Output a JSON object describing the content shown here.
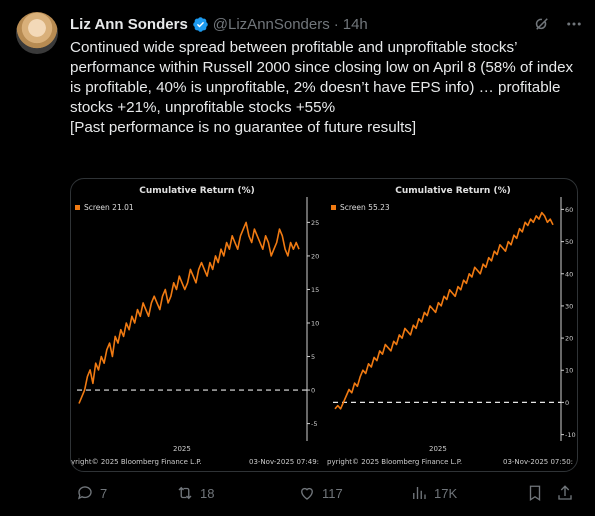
{
  "author": {
    "name": "Liz Ann Sonders",
    "handle": "@LizAnnSonders",
    "time": "14h"
  },
  "tweet": {
    "text": "Continued wide spread between profitable and unprofitable stocks’ performance within Russell 2000 since closing low on April 8 (58% of index is profitable, 40% is unprofitable, 2% doesn’t have EPS info) … profitable stocks +21%, unprofitable stocks +55%\n[Past performance is no guarantee of future results]"
  },
  "charts": [
    {
      "title": "Cumulative Return (%)",
      "legend": "Screen 21.01",
      "xlabel": "2025",
      "footer_left": "yright© 2025 Bloomberg Finance L.P.",
      "footer_right": "03-Nov-2025 07:49:",
      "y_ticks": [
        "25",
        "20",
        "15",
        "10",
        "5",
        "0",
        "-5"
      ]
    },
    {
      "title": "Cumulative Return (%)",
      "legend": "Screen 55.23",
      "xlabel": "2025",
      "footer_left": "pyright© 2025 Bloomberg Finance L.P.",
      "footer_right": "03-Nov-2025 07:50:",
      "y_ticks": [
        "60",
        "50",
        "40",
        "30",
        "20",
        "10",
        "0",
        "-10"
      ]
    }
  ],
  "chart_data": [
    {
      "type": "line",
      "title": "Cumulative Return (%)",
      "series": [
        {
          "name": "Screen",
          "last": 21.01,
          "values": [
            -2,
            -1,
            0,
            2,
            3,
            1,
            4,
            3,
            5,
            4,
            6,
            7,
            5,
            8,
            7,
            9,
            8,
            10,
            9,
            11,
            10,
            12,
            11,
            13,
            12,
            11,
            13,
            14,
            13,
            12,
            14,
            15,
            13,
            14,
            16,
            15,
            17,
            16,
            15,
            16,
            18,
            17,
            16,
            18,
            19,
            18,
            17,
            19,
            18,
            20,
            19,
            21,
            20,
            22,
            21,
            23,
            22,
            21,
            23,
            24,
            25,
            23,
            22,
            24,
            23,
            22,
            21,
            23,
            22,
            20,
            21,
            22,
            24,
            23,
            21,
            20,
            22,
            21,
            22,
            21.01
          ]
        }
      ],
      "ylim": [
        -7,
        27
      ],
      "grid": false,
      "color": "#f07a12"
    },
    {
      "type": "line",
      "title": "Cumulative Return (%)",
      "series": [
        {
          "name": "Screen",
          "last": 55.23,
          "values": [
            -2,
            -1,
            -2,
            0,
            2,
            4,
            3,
            6,
            5,
            8,
            10,
            9,
            12,
            11,
            14,
            13,
            16,
            15,
            18,
            17,
            16,
            19,
            18,
            21,
            20,
            23,
            22,
            21,
            24,
            23,
            26,
            25,
            28,
            27,
            30,
            29,
            28,
            31,
            30,
            33,
            32,
            35,
            34,
            33,
            36,
            35,
            38,
            37,
            40,
            39,
            42,
            41,
            40,
            43,
            42,
            45,
            44,
            47,
            46,
            49,
            48,
            47,
            50,
            49,
            52,
            51,
            54,
            53,
            56,
            55,
            57,
            56,
            58,
            57,
            59,
            58,
            56,
            57,
            55.23
          ]
        }
      ],
      "ylim": [
        -12,
        62
      ],
      "grid": false,
      "color": "#f07a12"
    }
  ],
  "actions": {
    "replies": "7",
    "reposts": "18",
    "likes": "117",
    "views": "17K"
  },
  "colors": {
    "background": "#000000",
    "text": "#e7e9ea",
    "muted": "#71767b",
    "verified": "#1d9bf0",
    "line": "#f07a12"
  }
}
